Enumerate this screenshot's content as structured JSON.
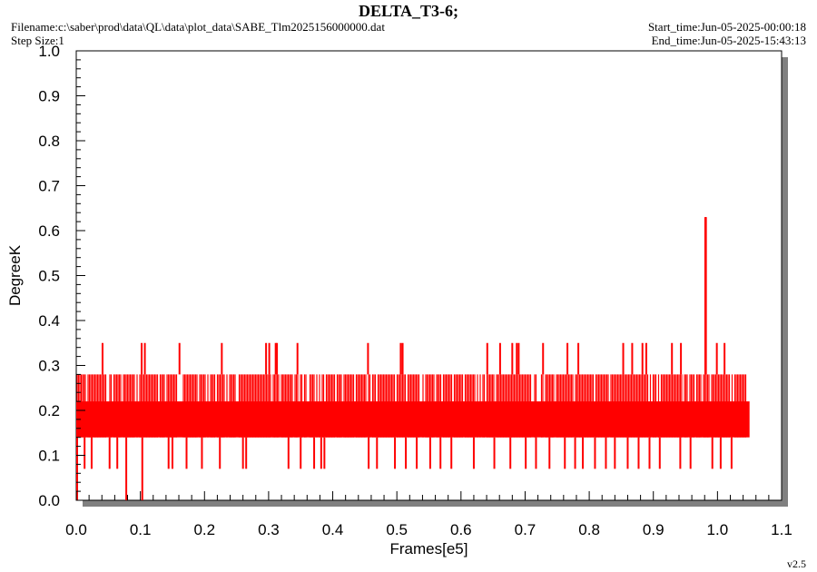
{
  "header": {
    "title": "DELTA_T3-6;",
    "filename": "Filename:c:\\saber\\prod\\data\\QL\\data\\plot_data\\SABE_Tlm2025156000000.dat",
    "step_size": "Step Size:1",
    "start_time": "Start_time:Jun-05-2025-00:00:18",
    "end_time": "End_time:Jun-05-2025-15:43:13"
  },
  "footer": {
    "version": "v2.5"
  },
  "colors": {
    "series": "#ff0000",
    "shadow": "#808080",
    "frame": "#000000",
    "background": "#ffffff"
  },
  "chart_data": {
    "type": "line",
    "title": "DELTA_T3-6;",
    "xlabel": "Frames[e5]",
    "ylabel": "DegreeK",
    "xlim": [
      0.0,
      1.1
    ],
    "ylim": [
      0.0,
      1.0
    ],
    "x_ticks": [
      "0.0",
      "0.1",
      "0.2",
      "0.3",
      "0.4",
      "0.5",
      "0.6",
      "0.7",
      "0.8",
      "0.9",
      "1.0",
      "1.1"
    ],
    "y_ticks": [
      "0.0",
      "0.1",
      "0.2",
      "0.3",
      "0.4",
      "0.5",
      "0.6",
      "0.7",
      "0.8",
      "0.9",
      "1.0"
    ],
    "grid": false,
    "legend": "none",
    "series": [
      {
        "band_lower": 0.14,
        "band_upper": 0.22,
        "band_upper_dense": 0.28,
        "x_end": 1.05,
        "start_spike_low": 0.0,
        "spikes_high": [
          {
            "x": 0.041,
            "y": 0.35
          },
          {
            "x": 0.102,
            "y": 0.35
          },
          {
            "x": 0.107,
            "y": 0.35
          },
          {
            "x": 0.161,
            "y": 0.35
          },
          {
            "x": 0.227,
            "y": 0.35
          },
          {
            "x": 0.296,
            "y": 0.35
          },
          {
            "x": 0.301,
            "y": 0.35
          },
          {
            "x": 0.311,
            "y": 0.35
          },
          {
            "x": 0.313,
            "y": 0.35
          },
          {
            "x": 0.345,
            "y": 0.35
          },
          {
            "x": 0.455,
            "y": 0.35
          },
          {
            "x": 0.506,
            "y": 0.35
          },
          {
            "x": 0.509,
            "y": 0.35
          },
          {
            "x": 0.641,
            "y": 0.35
          },
          {
            "x": 0.661,
            "y": 0.35
          },
          {
            "x": 0.68,
            "y": 0.35
          },
          {
            "x": 0.687,
            "y": 0.35
          },
          {
            "x": 0.69,
            "y": 0.35
          },
          {
            "x": 0.728,
            "y": 0.35
          },
          {
            "x": 0.766,
            "y": 0.35
          },
          {
            "x": 0.783,
            "y": 0.35
          },
          {
            "x": 0.853,
            "y": 0.35
          },
          {
            "x": 0.867,
            "y": 0.35
          },
          {
            "x": 0.883,
            "y": 0.35
          },
          {
            "x": 0.889,
            "y": 0.35
          },
          {
            "x": 0.929,
            "y": 0.35
          },
          {
            "x": 0.943,
            "y": 0.35
          },
          {
            "x": 0.981,
            "y": 0.63
          },
          {
            "x": 0.982,
            "y": 0.63
          },
          {
            "x": 0.999,
            "y": 0.35
          },
          {
            "x": 1.011,
            "y": 0.35
          }
        ],
        "spikes_low": [
          {
            "x": 0.013,
            "y": 0.07
          },
          {
            "x": 0.024,
            "y": 0.07
          },
          {
            "x": 0.052,
            "y": 0.07
          },
          {
            "x": 0.064,
            "y": 0.07
          },
          {
            "x": 0.078,
            "y": 0.0
          },
          {
            "x": 0.103,
            "y": 0.0
          },
          {
            "x": 0.144,
            "y": 0.07
          },
          {
            "x": 0.15,
            "y": 0.07
          },
          {
            "x": 0.172,
            "y": 0.07
          },
          {
            "x": 0.196,
            "y": 0.07
          },
          {
            "x": 0.224,
            "y": 0.07
          },
          {
            "x": 0.26,
            "y": 0.07
          },
          {
            "x": 0.265,
            "y": 0.07
          },
          {
            "x": 0.331,
            "y": 0.07
          },
          {
            "x": 0.35,
            "y": 0.07
          },
          {
            "x": 0.371,
            "y": 0.07
          },
          {
            "x": 0.382,
            "y": 0.07
          },
          {
            "x": 0.387,
            "y": 0.07
          },
          {
            "x": 0.456,
            "y": 0.07
          },
          {
            "x": 0.469,
            "y": 0.07
          },
          {
            "x": 0.497,
            "y": 0.07
          },
          {
            "x": 0.514,
            "y": 0.07
          },
          {
            "x": 0.531,
            "y": 0.07
          },
          {
            "x": 0.552,
            "y": 0.07
          },
          {
            "x": 0.568,
            "y": 0.07
          },
          {
            "x": 0.585,
            "y": 0.07
          },
          {
            "x": 0.62,
            "y": 0.07
          },
          {
            "x": 0.652,
            "y": 0.07
          },
          {
            "x": 0.677,
            "y": 0.07
          },
          {
            "x": 0.701,
            "y": 0.07
          },
          {
            "x": 0.717,
            "y": 0.07
          },
          {
            "x": 0.738,
            "y": 0.07
          },
          {
            "x": 0.762,
            "y": 0.07
          },
          {
            "x": 0.778,
            "y": 0.07
          },
          {
            "x": 0.79,
            "y": 0.07
          },
          {
            "x": 0.809,
            "y": 0.07
          },
          {
            "x": 0.826,
            "y": 0.07
          },
          {
            "x": 0.84,
            "y": 0.07
          },
          {
            "x": 0.86,
            "y": 0.07
          },
          {
            "x": 0.877,
            "y": 0.07
          },
          {
            "x": 0.894,
            "y": 0.07
          },
          {
            "x": 0.91,
            "y": 0.07
          },
          {
            "x": 0.942,
            "y": 0.07
          },
          {
            "x": 0.958,
            "y": 0.07
          },
          {
            "x": 0.992,
            "y": 0.07
          },
          {
            "x": 1.005,
            "y": 0.07
          },
          {
            "x": 1.022,
            "y": 0.07
          }
        ]
      }
    ]
  }
}
